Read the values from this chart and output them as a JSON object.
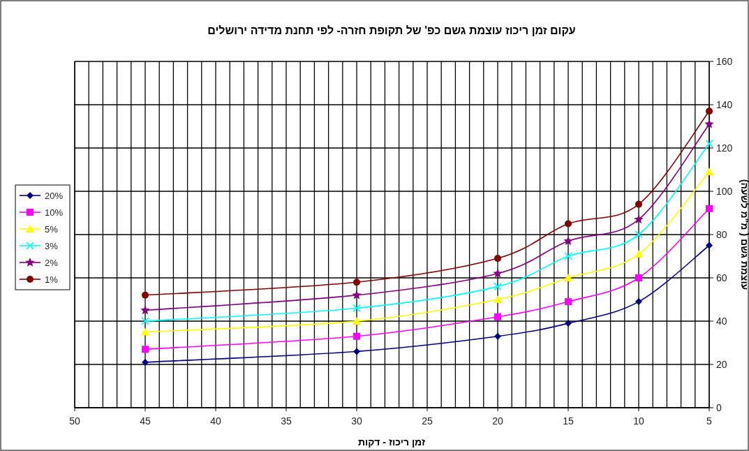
{
  "chart_data": {
    "type": "line",
    "title": "עקום זמן ריכוז עוצמת גשם כפ' של תקופת חזרה- לפי תחנת מדידה ירושלים",
    "xlabel": "זמן ריכוז - דקות",
    "ylabel": "עוצמת גשם ( מ\"מ לשעה)",
    "x": [
      45,
      30,
      20,
      15,
      10,
      5
    ],
    "series": [
      {
        "name": "20%",
        "color": "#000080",
        "marker": "diamond",
        "values": [
          21,
          26,
          33,
          39,
          49,
          75
        ]
      },
      {
        "name": "10%",
        "color": "#ff00ff",
        "marker": "square",
        "values": [
          27,
          33,
          42,
          49,
          60,
          92
        ]
      },
      {
        "name": "5%",
        "color": "#ffff00",
        "marker": "triangle",
        "values": [
          35,
          40,
          50,
          60,
          71,
          109
        ]
      },
      {
        "name": "3%",
        "color": "#00ffff",
        "marker": "cross",
        "values": [
          40,
          46,
          56,
          70,
          80,
          122
        ]
      },
      {
        "name": "2%",
        "color": "#800080",
        "marker": "star",
        "values": [
          45,
          52,
          62,
          77,
          87,
          131
        ]
      },
      {
        "name": "1%",
        "color": "#800000",
        "marker": "circle",
        "values": [
          52,
          58,
          69,
          85,
          94,
          137
        ]
      }
    ],
    "xlim": [
      50,
      5
    ],
    "xticks": [
      50,
      {
        "value": 49,
        "label": null
      },
      {
        "value": 48,
        "label": null
      },
      {
        "value": 47,
        "label": null
      },
      {
        "value": 46,
        "label": null
      },
      45,
      {
        "value": 44,
        "label": null
      },
      {
        "value": 43,
        "label": null
      },
      {
        "value": 42,
        "label": null
      },
      {
        "value": 41,
        "label": null
      },
      40,
      {
        "value": 39,
        "label": null
      },
      {
        "value": 38,
        "label": null
      },
      {
        "value": 37,
        "label": null
      },
      {
        "value": 36,
        "label": null
      },
      35,
      {
        "value": 34,
        "label": null
      },
      {
        "value": 33,
        "label": null
      },
      {
        "value": 32,
        "label": null
      },
      {
        "value": 31,
        "label": null
      },
      30,
      {
        "value": 29,
        "label": null
      },
      {
        "value": 28,
        "label": null
      },
      {
        "value": 27,
        "label": null
      },
      {
        "value": 26,
        "label": null
      },
      25,
      {
        "value": 24,
        "label": null
      },
      {
        "value": 23,
        "label": null
      },
      {
        "value": 22,
        "label": null
      },
      {
        "value": 21,
        "label": null
      },
      20,
      {
        "value": 19,
        "label": null
      },
      {
        "value": 18,
        "label": null
      },
      {
        "value": 17,
        "label": null
      },
      {
        "value": 16,
        "label": null
      },
      15,
      {
        "value": 14,
        "label": null
      },
      {
        "value": 13,
        "label": null
      },
      {
        "value": 12,
        "label": null
      },
      {
        "value": 11,
        "label": null
      },
      10,
      {
        "value": 9,
        "label": null
      },
      {
        "value": 8,
        "label": null
      },
      {
        "value": 7,
        "label": null
      },
      {
        "value": 6,
        "label": null
      },
      5
    ],
    "ylim": [
      0,
      160
    ],
    "yticks": [
      0,
      20,
      40,
      60,
      80,
      100,
      120,
      140,
      160
    ],
    "grid": true,
    "legend": "left",
    "line_style": "solid"
  }
}
